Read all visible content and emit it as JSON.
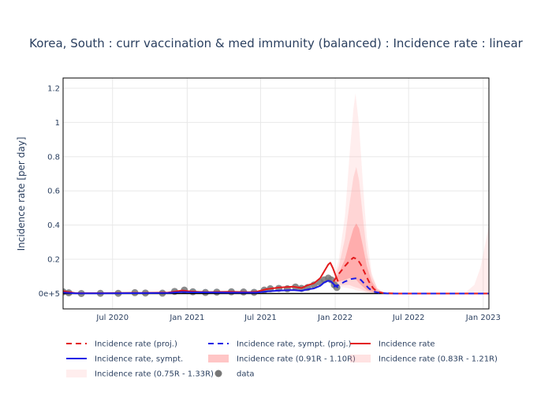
{
  "chart_data": {
    "type": "line",
    "title": "Korea, South : curr vaccination & med immunity (balanced) : Incidence rate : linear",
    "ylabel": "Incidence rate [per day]",
    "xlabel": "",
    "x_range": [
      "2020-03-01",
      "2023-01-15"
    ],
    "ylim": [
      -0.09,
      1.26
    ],
    "y_ticks": [
      0,
      0.2,
      0.4,
      0.6,
      0.8,
      1,
      1.2
    ],
    "y_tick_labels": [
      "0e+5",
      "0.2",
      "0.4",
      "0.6",
      "0.8",
      "1",
      "1.2"
    ],
    "x_ticks": [
      "2020-07-01",
      "2021-01-01",
      "2021-07-01",
      "2022-01-01",
      "2022-07-01",
      "2023-01-01"
    ],
    "x_tick_labels": [
      "Jul 2020",
      "Jan 2021",
      "Jul 2021",
      "Jan 2022",
      "Jul 2022",
      "Jan 2023"
    ],
    "grid": true,
    "legend_position": "bottom",
    "series": [
      {
        "name": "Incidence rate (proj.)",
        "style": "dashed",
        "color": "#e31a1c",
        "points": [
          [
            "2021-12-28",
            0.07
          ],
          [
            "2022-01-05",
            0.1
          ],
          [
            "2022-01-15",
            0.13
          ],
          [
            "2022-01-25",
            0.16
          ],
          [
            "2022-02-05",
            0.19
          ],
          [
            "2022-02-15",
            0.21
          ],
          [
            "2022-02-25",
            0.2
          ],
          [
            "2022-03-05",
            0.17
          ],
          [
            "2022-03-15",
            0.12
          ],
          [
            "2022-03-25",
            0.07
          ],
          [
            "2022-04-05",
            0.03
          ],
          [
            "2022-04-15",
            0.01
          ],
          [
            "2022-05-01",
            0.002
          ],
          [
            "2022-06-01",
            0.0
          ],
          [
            "2022-09-01",
            0.0
          ],
          [
            "2023-01-15",
            0.0
          ]
        ]
      },
      {
        "name": "Incidence rate, sympt. (proj.)",
        "style": "dashed",
        "color": "#1a1ae6",
        "points": [
          [
            "2021-12-28",
            0.04
          ],
          [
            "2022-01-10",
            0.05
          ],
          [
            "2022-01-25",
            0.07
          ],
          [
            "2022-02-10",
            0.085
          ],
          [
            "2022-02-25",
            0.09
          ],
          [
            "2022-03-05",
            0.08
          ],
          [
            "2022-03-15",
            0.055
          ],
          [
            "2022-03-25",
            0.03
          ],
          [
            "2022-04-05",
            0.012
          ],
          [
            "2022-04-20",
            0.004
          ],
          [
            "2022-05-15",
            0.0
          ],
          [
            "2022-09-01",
            0.0
          ],
          [
            "2023-01-15",
            0.0
          ]
        ]
      },
      {
        "name": "Incidence rate",
        "style": "solid",
        "color": "#e31a1c",
        "points": [
          [
            "2020-03-01",
            0.015
          ],
          [
            "2020-03-10",
            0.01
          ],
          [
            "2020-04-01",
            0.002
          ],
          [
            "2020-06-01",
            0.002
          ],
          [
            "2020-08-20",
            0.004
          ],
          [
            "2020-09-10",
            0.003
          ],
          [
            "2020-11-15",
            0.006
          ],
          [
            "2020-12-20",
            0.018
          ],
          [
            "2021-01-10",
            0.012
          ],
          [
            "2021-02-15",
            0.008
          ],
          [
            "2021-04-15",
            0.01
          ],
          [
            "2021-06-01",
            0.008
          ],
          [
            "2021-06-20",
            0.01
          ],
          [
            "2021-07-15",
            0.025
          ],
          [
            "2021-08-15",
            0.035
          ],
          [
            "2021-09-20",
            0.04
          ],
          [
            "2021-10-10",
            0.032
          ],
          [
            "2021-10-25",
            0.048
          ],
          [
            "2021-11-10",
            0.06
          ],
          [
            "2021-11-25",
            0.09
          ],
          [
            "2021-12-05",
            0.13
          ],
          [
            "2021-12-15",
            0.17
          ],
          [
            "2021-12-20",
            0.18
          ],
          [
            "2021-12-26",
            0.15
          ],
          [
            "2022-01-03",
            0.1
          ],
          [
            "2022-01-08",
            0.07
          ]
        ]
      },
      {
        "name": "Incidence rate, sympt.",
        "style": "solid",
        "color": "#1a1ae6",
        "points": [
          [
            "2020-03-01",
            0.006
          ],
          [
            "2020-04-01",
            0.001
          ],
          [
            "2020-06-01",
            0.001
          ],
          [
            "2020-08-20",
            0.002
          ],
          [
            "2020-11-15",
            0.003
          ],
          [
            "2020-12-20",
            0.009
          ],
          [
            "2021-01-10",
            0.007
          ],
          [
            "2021-04-15",
            0.005
          ],
          [
            "2021-06-20",
            0.005
          ],
          [
            "2021-07-15",
            0.012
          ],
          [
            "2021-08-15",
            0.017
          ],
          [
            "2021-09-20",
            0.02
          ],
          [
            "2021-10-10",
            0.016
          ],
          [
            "2021-10-25",
            0.024
          ],
          [
            "2021-11-10",
            0.03
          ],
          [
            "2021-11-25",
            0.045
          ],
          [
            "2021-12-05",
            0.065
          ],
          [
            "2021-12-15",
            0.075
          ],
          [
            "2021-12-22",
            0.07
          ],
          [
            "2021-12-30",
            0.05
          ],
          [
            "2022-01-08",
            0.035
          ]
        ]
      },
      {
        "name": "Incidence rate (0.91R - 1.10R)",
        "style": "band",
        "color": "rgba(255,120,120,0.42)",
        "points": [
          [
            "2021-12-28",
            0.06,
            0.07
          ],
          [
            "2022-01-10",
            0.07,
            0.12
          ],
          [
            "2022-01-25",
            0.08,
            0.2
          ],
          [
            "2022-02-05",
            0.09,
            0.3
          ],
          [
            "2022-02-15",
            0.09,
            0.38
          ],
          [
            "2022-02-22",
            0.08,
            0.41
          ],
          [
            "2022-03-01",
            0.06,
            0.38
          ],
          [
            "2022-03-10",
            0.04,
            0.28
          ],
          [
            "2022-03-20",
            0.02,
            0.16
          ],
          [
            "2022-04-01",
            0.01,
            0.07
          ],
          [
            "2022-04-15",
            0.0,
            0.02
          ],
          [
            "2022-05-01",
            0.0,
            0.005
          ],
          [
            "2022-06-01",
            0.0,
            0.0
          ]
        ]
      },
      {
        "name": "Incidence rate (0.83R - 1.21R)",
        "style": "band",
        "color": "rgba(255,150,150,0.28)",
        "points": [
          [
            "2021-12-28",
            0.05,
            0.08
          ],
          [
            "2022-01-10",
            0.05,
            0.16
          ],
          [
            "2022-01-25",
            0.05,
            0.32
          ],
          [
            "2022-02-05",
            0.05,
            0.52
          ],
          [
            "2022-02-15",
            0.04,
            0.68
          ],
          [
            "2022-02-22",
            0.035,
            0.74
          ],
          [
            "2022-03-01",
            0.03,
            0.66
          ],
          [
            "2022-03-10",
            0.02,
            0.45
          ],
          [
            "2022-03-20",
            0.01,
            0.24
          ],
          [
            "2022-04-01",
            0.005,
            0.1
          ],
          [
            "2022-04-15",
            0.0,
            0.03
          ],
          [
            "2022-05-01",
            0.0,
            0.005
          ],
          [
            "2022-06-01",
            0.0,
            0.0
          ]
        ]
      },
      {
        "name": "Incidence rate (0.75R - 1.33R)",
        "style": "band",
        "color": "rgba(255,170,170,0.2)",
        "points": [
          [
            "2021-12-28",
            0.04,
            0.09
          ],
          [
            "2022-01-10",
            0.04,
            0.2
          ],
          [
            "2022-01-25",
            0.035,
            0.45
          ],
          [
            "2022-02-05",
            0.03,
            0.8
          ],
          [
            "2022-02-15",
            0.025,
            1.08
          ],
          [
            "2022-02-20",
            0.02,
            1.17
          ],
          [
            "2022-03-01",
            0.015,
            0.98
          ],
          [
            "2022-03-10",
            0.01,
            0.65
          ],
          [
            "2022-03-20",
            0.005,
            0.33
          ],
          [
            "2022-04-01",
            0.0,
            0.12
          ],
          [
            "2022-04-15",
            0.0,
            0.03
          ],
          [
            "2022-05-01",
            0.0,
            0.005
          ],
          [
            "2022-06-01",
            0.0,
            0.0
          ],
          [
            "2022-11-15",
            0.0,
            0.0
          ],
          [
            "2022-12-10",
            0.0,
            0.05
          ],
          [
            "2022-12-25",
            0.0,
            0.15
          ],
          [
            "2023-01-05",
            0.0,
            0.28
          ],
          [
            "2023-01-15",
            0.0,
            0.4
          ]
        ]
      },
      {
        "name": "data",
        "style": "markers",
        "color": "#777777",
        "points": [
          [
            "2020-03-01",
            0.01
          ],
          [
            "2020-03-15",
            0.004
          ],
          [
            "2020-04-15",
            0.0
          ],
          [
            "2020-06-01",
            0.001
          ],
          [
            "2020-07-15",
            0.001
          ],
          [
            "2020-08-25",
            0.005
          ],
          [
            "2020-09-20",
            0.003
          ],
          [
            "2020-11-01",
            0.002
          ],
          [
            "2020-12-01",
            0.012
          ],
          [
            "2020-12-25",
            0.02
          ],
          [
            "2021-01-15",
            0.01
          ],
          [
            "2021-02-15",
            0.006
          ],
          [
            "2021-03-15",
            0.008
          ],
          [
            "2021-04-20",
            0.01
          ],
          [
            "2021-05-20",
            0.009
          ],
          [
            "2021-06-15",
            0.007
          ],
          [
            "2021-07-10",
            0.02
          ],
          [
            "2021-07-25",
            0.028
          ],
          [
            "2021-08-15",
            0.03
          ],
          [
            "2021-09-05",
            0.028
          ],
          [
            "2021-09-25",
            0.038
          ],
          [
            "2021-10-10",
            0.03
          ],
          [
            "2021-10-25",
            0.035
          ],
          [
            "2021-11-10",
            0.05
          ],
          [
            "2021-11-25",
            0.065
          ],
          [
            "2021-12-05",
            0.08
          ],
          [
            "2021-12-15",
            0.09
          ],
          [
            "2021-12-22",
            0.08
          ],
          [
            "2021-12-30",
            0.05
          ],
          [
            "2022-01-05",
            0.035
          ]
        ]
      }
    ]
  }
}
